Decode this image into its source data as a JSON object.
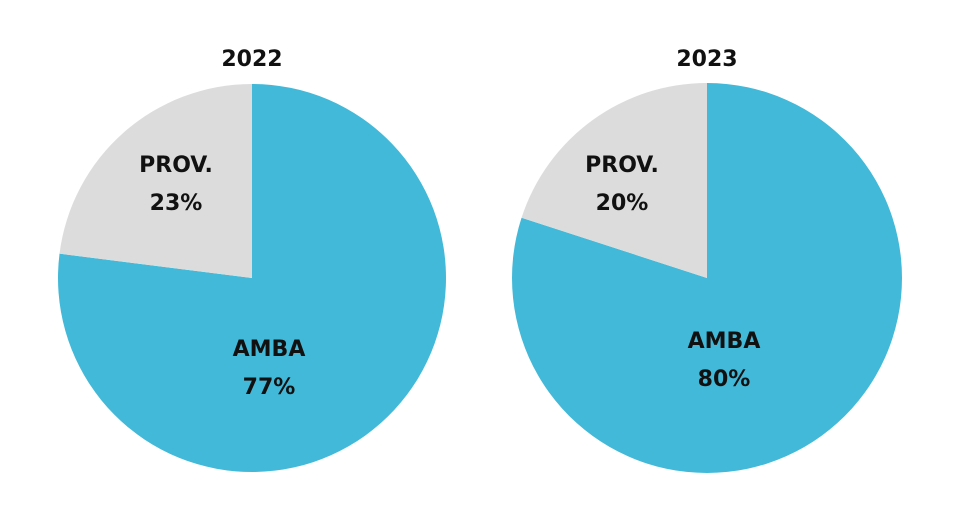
{
  "chart_data": [
    {
      "type": "pie",
      "title": "2022",
      "slices": [
        {
          "label": "AMBA",
          "value": 77,
          "value_label": "77%",
          "color": "#42B9D8"
        },
        {
          "label": "PROV.",
          "value": 23,
          "value_label": "23%",
          "color": "#DCDCDC"
        }
      ],
      "start": "12 o'clock",
      "direction": "clockwise"
    },
    {
      "type": "pie",
      "title": "2023",
      "slices": [
        {
          "label": "AMBA",
          "value": 80,
          "value_label": "80%",
          "color": "#42B9D8"
        },
        {
          "label": "PROV.",
          "value": 20,
          "value_label": "20%",
          "color": "#DCDCDC"
        }
      ],
      "start": "12 o'clock",
      "direction": "clockwise"
    }
  ]
}
